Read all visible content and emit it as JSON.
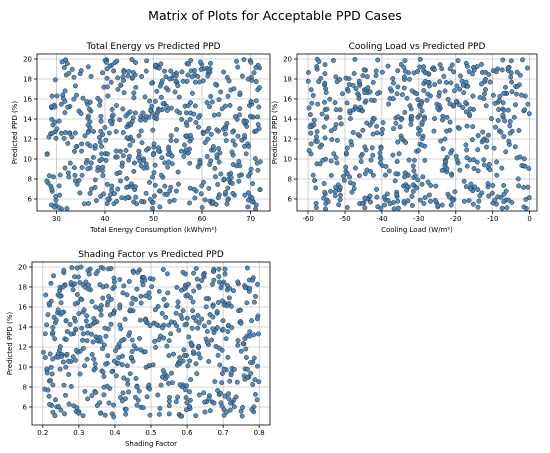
{
  "figure": {
    "title": "Matrix of Plots for Acceptable PPD Cases"
  },
  "colors": {
    "marker_fill": "#4a7fb0",
    "marker_edge": "#13324f",
    "grid": "#b0b0b0"
  },
  "chart_data": [
    {
      "type": "scatter",
      "title": "Total Energy vs Predicted PPD",
      "xlabel": "Total Energy Consumption (kWh/m²)",
      "ylabel": "Predicted PPD (%)",
      "xlim": [
        26,
        74
      ],
      "ylim": [
        4.8,
        20.5
      ],
      "xticks": [
        30,
        40,
        50,
        60,
        70
      ],
      "yticks": [
        6,
        8,
        10,
        12,
        14,
        16,
        18,
        20
      ],
      "grid": true,
      "n_points": 600,
      "x_range": [
        28,
        72
      ],
      "y_range": [
        5,
        20
      ],
      "seed": 11
    },
    {
      "type": "scatter",
      "title": "Cooling Load vs Predicted PPD",
      "xlabel": "Cooling Load (W/m²)",
      "ylabel": "Predicted PPD (%)",
      "xlim": [
        -63,
        2
      ],
      "ylim": [
        4.8,
        20.5
      ],
      "xticks": [
        -60,
        -50,
        -40,
        -30,
        -20,
        -10,
        0
      ],
      "yticks": [
        6,
        8,
        10,
        12,
        14,
        16,
        18,
        20
      ],
      "grid": true,
      "n_points": 600,
      "x_range": [
        -60,
        0
      ],
      "y_range": [
        5,
        20
      ],
      "seed": 23
    },
    {
      "type": "scatter",
      "title": "Shading Factor vs Predicted PPD",
      "xlabel": "Shading Factor",
      "ylabel": "Predicted PPD (%)",
      "xlim": [
        0.17,
        0.83
      ],
      "ylim": [
        4.2,
        20.5
      ],
      "xticks": [
        0.2,
        0.3,
        0.4,
        0.5,
        0.6,
        0.7,
        0.8
      ],
      "yticks": [
        6,
        8,
        10,
        12,
        14,
        16,
        18,
        20
      ],
      "grid": true,
      "n_points": 600,
      "x_range": [
        0.2,
        0.8
      ],
      "y_range": [
        5,
        20
      ],
      "seed": 37
    }
  ]
}
